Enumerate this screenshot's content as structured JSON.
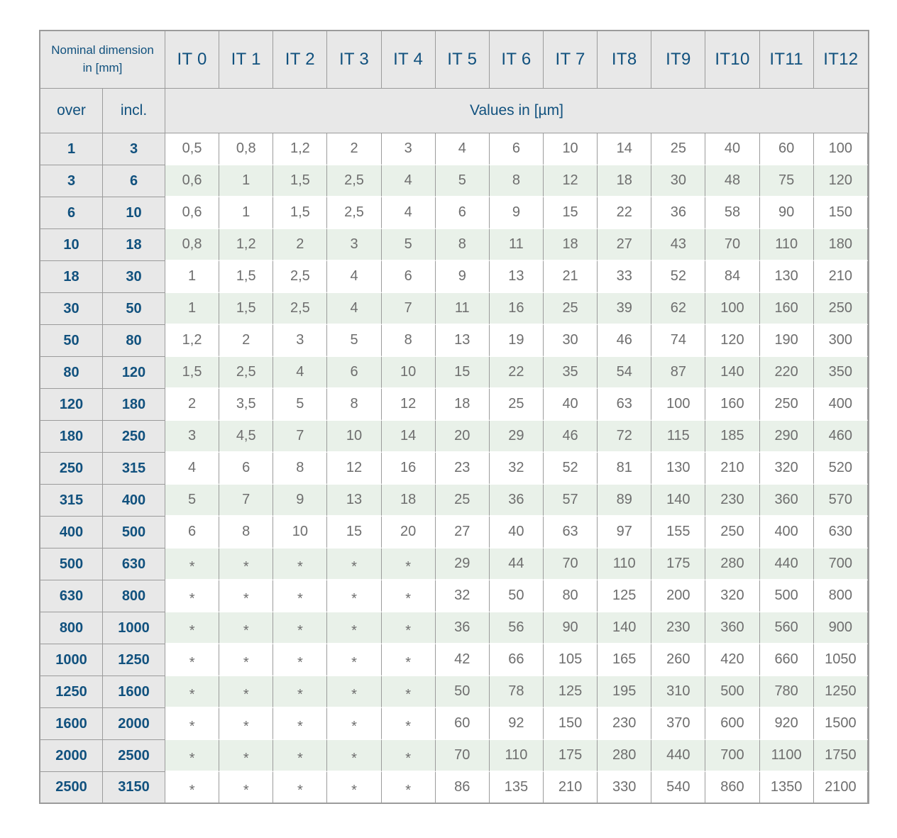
{
  "chart_data": {
    "type": "table",
    "header": {
      "corner_line1": "Nominal dimension",
      "corner_line2": "in [mm]",
      "over": "over",
      "incl": "incl.",
      "values_caption": "Values in [µm]",
      "it_grades": [
        "IT 0",
        "IT 1",
        "IT 2",
        "IT 3",
        "IT 4",
        "IT 5",
        "IT 6",
        "IT 7",
        "IT8",
        "IT9",
        "IT10",
        "IT11",
        "IT12"
      ]
    },
    "rows": [
      {
        "over": "1",
        "incl": "3",
        "values": [
          "0,5",
          "0,8",
          "1,2",
          "2",
          "3",
          "4",
          "6",
          "10",
          "14",
          "25",
          "40",
          "60",
          "100"
        ]
      },
      {
        "over": "3",
        "incl": "6",
        "values": [
          "0,6",
          "1",
          "1,5",
          "2,5",
          "4",
          "5",
          "8",
          "12",
          "18",
          "30",
          "48",
          "75",
          "120"
        ]
      },
      {
        "over": "6",
        "incl": "10",
        "values": [
          "0,6",
          "1",
          "1,5",
          "2,5",
          "4",
          "6",
          "9",
          "15",
          "22",
          "36",
          "58",
          "90",
          "150"
        ]
      },
      {
        "over": "10",
        "incl": "18",
        "values": [
          "0,8",
          "1,2",
          "2",
          "3",
          "5",
          "8",
          "11",
          "18",
          "27",
          "43",
          "70",
          "110",
          "180"
        ]
      },
      {
        "over": "18",
        "incl": "30",
        "values": [
          "1",
          "1,5",
          "2,5",
          "4",
          "6",
          "9",
          "13",
          "21",
          "33",
          "52",
          "84",
          "130",
          "210"
        ]
      },
      {
        "over": "30",
        "incl": "50",
        "values": [
          "1",
          "1,5",
          "2,5",
          "4",
          "7",
          "11",
          "16",
          "25",
          "39",
          "62",
          "100",
          "160",
          "250"
        ]
      },
      {
        "over": "50",
        "incl": "80",
        "values": [
          "1,2",
          "2",
          "3",
          "5",
          "8",
          "13",
          "19",
          "30",
          "46",
          "74",
          "120",
          "190",
          "300"
        ]
      },
      {
        "over": "80",
        "incl": "120",
        "values": [
          "1,5",
          "2,5",
          "4",
          "6",
          "10",
          "15",
          "22",
          "35",
          "54",
          "87",
          "140",
          "220",
          "350"
        ]
      },
      {
        "over": "120",
        "incl": "180",
        "values": [
          "2",
          "3,5",
          "5",
          "8",
          "12",
          "18",
          "25",
          "40",
          "63",
          "100",
          "160",
          "250",
          "400"
        ]
      },
      {
        "over": "180",
        "incl": "250",
        "values": [
          "3",
          "4,5",
          "7",
          "10",
          "14",
          "20",
          "29",
          "46",
          "72",
          "115",
          "185",
          "290",
          "460"
        ]
      },
      {
        "over": "250",
        "incl": "315",
        "values": [
          "4",
          "6",
          "8",
          "12",
          "16",
          "23",
          "32",
          "52",
          "81",
          "130",
          "210",
          "320",
          "520"
        ]
      },
      {
        "over": "315",
        "incl": "400",
        "values": [
          "5",
          "7",
          "9",
          "13",
          "18",
          "25",
          "36",
          "57",
          "89",
          "140",
          "230",
          "360",
          "570"
        ]
      },
      {
        "over": "400",
        "incl": "500",
        "values": [
          "6",
          "8",
          "10",
          "15",
          "20",
          "27",
          "40",
          "63",
          "97",
          "155",
          "250",
          "400",
          "630"
        ]
      },
      {
        "over": "500",
        "incl": "630",
        "values": [
          "*",
          "*",
          "*",
          "*",
          "*",
          "29",
          "44",
          "70",
          "110",
          "175",
          "280",
          "440",
          "700"
        ]
      },
      {
        "over": "630",
        "incl": "800",
        "values": [
          "*",
          "*",
          "*",
          "*",
          "*",
          "32",
          "50",
          "80",
          "125",
          "200",
          "320",
          "500",
          "800"
        ]
      },
      {
        "over": "800",
        "incl": "1000",
        "values": [
          "*",
          "*",
          "*",
          "*",
          "*",
          "36",
          "56",
          "90",
          "140",
          "230",
          "360",
          "560",
          "900"
        ]
      },
      {
        "over": "1000",
        "incl": "1250",
        "values": [
          "*",
          "*",
          "*",
          "*",
          "*",
          "42",
          "66",
          "105",
          "165",
          "260",
          "420",
          "660",
          "1050"
        ]
      },
      {
        "over": "1250",
        "incl": "1600",
        "values": [
          "*",
          "*",
          "*",
          "*",
          "*",
          "50",
          "78",
          "125",
          "195",
          "310",
          "500",
          "780",
          "1250"
        ]
      },
      {
        "over": "1600",
        "incl": "2000",
        "values": [
          "*",
          "*",
          "*",
          "*",
          "*",
          "60",
          "92",
          "150",
          "230",
          "370",
          "600",
          "920",
          "1500"
        ]
      },
      {
        "over": "2000",
        "incl": "2500",
        "values": [
          "*",
          "*",
          "*",
          "*",
          "*",
          "70",
          "110",
          "175",
          "280",
          "440",
          "700",
          "1100",
          "1750"
        ]
      },
      {
        "over": "2500",
        "incl": "3150",
        "values": [
          "*",
          "*",
          "*",
          "*",
          "*",
          "86",
          "135",
          "210",
          "330",
          "540",
          "860",
          "1350",
          "2100"
        ]
      }
    ]
  },
  "colors": {
    "header_bg": "#e8e8e8",
    "header_text": "#11517e",
    "row_alt_bg": "#e9f1e9",
    "value_text": "#6e6e6e",
    "border": "#9b9b9b"
  }
}
